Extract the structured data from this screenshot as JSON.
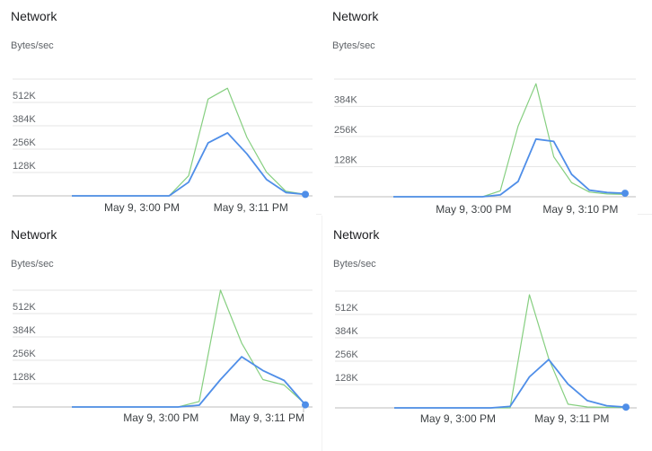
{
  "colors": {
    "sent": "#4f8ee8",
    "received": "#86cf80",
    "grid": "#e6e6e6"
  },
  "panels": [
    {
      "title": "Network",
      "unit_label": "Bytes/sec",
      "chart_data": {
        "type": "line",
        "title": "Network",
        "ylabel": "Bytes/sec",
        "ylim": [
          0,
          640
        ],
        "yticks": [
          128,
          256,
          384,
          512
        ],
        "ytick_labels": [
          "128K",
          "256K",
          "384K",
          "512K"
        ],
        "xticks": [
          {
            "x": 3.6,
            "label": "May 9, 3:00 PM"
          },
          {
            "x": 9.2,
            "label": "May 9, 3:11 PM"
          }
        ],
        "x": [
          0,
          1,
          2,
          3,
          4,
          5,
          6,
          7,
          8,
          9,
          10,
          11,
          12
        ],
        "series": [
          {
            "key": "received",
            "values": [
              0,
              0,
              0,
              0,
              0,
              0,
              110,
              530,
              590,
              320,
              130,
              25,
              8
            ],
            "end_marker": false
          },
          {
            "key": "sent",
            "values": [
              0,
              0,
              0,
              0,
              0,
              0,
              75,
              290,
              345,
              230,
              90,
              18,
              8
            ],
            "end_marker": true
          }
        ]
      }
    },
    {
      "title": "Network",
      "unit_label": "Bytes/sec",
      "chart_data": {
        "type": "line",
        "title": "Network",
        "ylabel": "Bytes/sec",
        "ylim": [
          0,
          500
        ],
        "yticks": [
          128,
          256,
          384
        ],
        "ytick_labels": [
          "128K",
          "256K",
          "384K"
        ],
        "xticks": [
          {
            "x": 4.5,
            "label": "May 9, 3:00 PM"
          },
          {
            "x": 10.5,
            "label": "May 9, 3:10 PM"
          }
        ],
        "x": [
          0,
          1,
          2,
          3,
          4,
          5,
          6,
          7,
          8,
          9,
          10,
          11,
          12,
          13
        ],
        "series": [
          {
            "key": "received",
            "values": [
              0,
              0,
              0,
              0,
              0,
              0,
              25,
              300,
              480,
              170,
              60,
              20,
              12,
              10
            ],
            "end_marker": false
          },
          {
            "key": "sent",
            "values": [
              0,
              0,
              0,
              0,
              0,
              0,
              8,
              65,
              245,
              235,
              95,
              28,
              18,
              15
            ],
            "end_marker": true
          }
        ]
      }
    },
    {
      "title": "Network",
      "unit_label": "Bytes/sec",
      "chart_data": {
        "type": "line",
        "title": "Network",
        "ylabel": "Bytes/sec",
        "ylim": [
          0,
          640
        ],
        "yticks": [
          128,
          256,
          384,
          512
        ],
        "ytick_labels": [
          "128K",
          "256K",
          "384K",
          "512K"
        ],
        "xticks": [
          {
            "x": 4.2,
            "label": "May 9, 3:00 PM"
          },
          {
            "x": 9.2,
            "label": "May 9, 3:11 PM"
          }
        ],
        "x": [
          0,
          1,
          2,
          3,
          4,
          5,
          6,
          7,
          8,
          9,
          10,
          11
        ],
        "series": [
          {
            "key": "received",
            "values": [
              0,
              0,
              0,
              0,
              0,
              0,
              30,
              640,
              350,
              150,
              120,
              15
            ],
            "end_marker": false
          },
          {
            "key": "sent",
            "values": [
              0,
              0,
              0,
              0,
              0,
              0,
              10,
              150,
              275,
              200,
              145,
              12
            ],
            "end_marker": true
          }
        ]
      }
    },
    {
      "title": "Network",
      "unit_label": "Bytes/sec",
      "chart_data": {
        "type": "line",
        "title": "Network",
        "ylabel": "Bytes/sec",
        "ylim": [
          0,
          640
        ],
        "yticks": [
          128,
          256,
          384,
          512
        ],
        "ytick_labels": [
          "128K",
          "256K",
          "384K",
          "512K"
        ],
        "xticks": [
          {
            "x": 3.3,
            "label": "May 9, 3:00 PM"
          },
          {
            "x": 9.2,
            "label": "May 9, 3:11 PM"
          }
        ],
        "x": [
          0,
          1,
          2,
          3,
          4,
          5,
          6,
          7,
          8,
          9,
          10,
          11,
          12
        ],
        "series": [
          {
            "key": "received",
            "values": [
              0,
              0,
              0,
              0,
              0,
              0,
              0,
              620,
              270,
              20,
              5,
              3,
              2
            ],
            "end_marker": false
          },
          {
            "key": "sent",
            "values": [
              0,
              0,
              0,
              0,
              0,
              0,
              8,
              170,
              265,
              130,
              40,
              12,
              4
            ],
            "end_marker": true
          }
        ]
      }
    }
  ]
}
